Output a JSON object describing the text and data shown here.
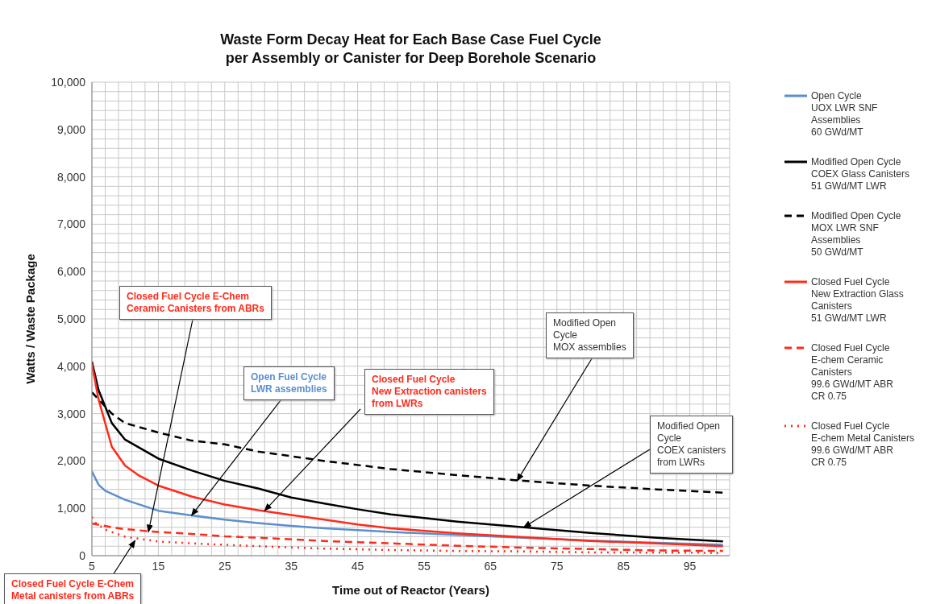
{
  "chart_data": {
    "type": "line",
    "title": "Waste Form Decay Heat for Each Base Case Fuel Cycle\nper Assembly or Canister for Deep Borehole Scenario",
    "xlabel": "Time out of Reactor (Years)",
    "ylabel": "Watts / Waste Package",
    "xlim": [
      5,
      101
    ],
    "ylim": [
      0,
      10000
    ],
    "xticks": [
      5,
      {
        "value": 7,
        "label": null
      },
      {
        "value": 9,
        "label": null
      },
      {
        "value": 11,
        "label": null
      },
      {
        "value": 13,
        "label": null
      },
      15,
      {
        "value": 17,
        "label": null
      },
      {
        "value": 19,
        "label": null
      },
      {
        "value": 21,
        "label": null
      },
      {
        "value": 23,
        "label": null
      },
      25,
      {
        "value": 27,
        "label": null
      },
      {
        "value": 29,
        "label": null
      },
      {
        "value": 31,
        "label": null
      },
      {
        "value": 33,
        "label": null
      },
      35,
      {
        "value": 37,
        "label": null
      },
      {
        "value": 39,
        "label": null
      },
      {
        "value": 41,
        "label": null
      },
      {
        "value": 43,
        "label": null
      },
      45,
      {
        "value": 47,
        "label": null
      },
      {
        "value": 49,
        "label": null
      },
      {
        "value": 51,
        "label": null
      },
      {
        "value": 53,
        "label": null
      },
      55,
      {
        "value": 57,
        "label": null
      },
      {
        "value": 59,
        "label": null
      },
      {
        "value": 61,
        "label": null
      },
      {
        "value": 63,
        "label": null
      },
      65,
      {
        "value": 67,
        "label": null
      },
      {
        "value": 69,
        "label": null
      },
      {
        "value": 71,
        "label": null
      },
      {
        "value": 73,
        "label": null
      },
      75,
      {
        "value": 77,
        "label": null
      },
      {
        "value": 79,
        "label": null
      },
      {
        "value": 81,
        "label": null
      },
      {
        "value": 83,
        "label": null
      },
      85,
      {
        "value": 87,
        "label": null
      },
      {
        "value": 89,
        "label": null
      },
      {
        "value": 91,
        "label": null
      },
      {
        "value": 93,
        "label": null
      },
      95,
      {
        "value": 97,
        "label": null
      },
      {
        "value": 99,
        "label": null
      },
      {
        "value": 101,
        "label": null
      }
    ],
    "yticks": [
      {
        "value": 0,
        "label": "0"
      },
      {
        "value": 200,
        "label": null
      },
      {
        "value": 400,
        "label": null
      },
      {
        "value": 600,
        "label": null
      },
      {
        "value": 800,
        "label": null
      },
      {
        "value": 1000,
        "label": "1,000"
      },
      {
        "value": 1200,
        "label": null
      },
      {
        "value": 1400,
        "label": null
      },
      {
        "value": 1600,
        "label": null
      },
      {
        "value": 1800,
        "label": null
      },
      {
        "value": 2000,
        "label": "2,000"
      },
      {
        "value": 2200,
        "label": null
      },
      {
        "value": 2400,
        "label": null
      },
      {
        "value": 2600,
        "label": null
      },
      {
        "value": 2800,
        "label": null
      },
      {
        "value": 3000,
        "label": "3,000"
      },
      {
        "value": 3200,
        "label": null
      },
      {
        "value": 3400,
        "label": null
      },
      {
        "value": 3600,
        "label": null
      },
      {
        "value": 3800,
        "label": null
      },
      {
        "value": 4000,
        "label": "4,000"
      },
      {
        "value": 4200,
        "label": null
      },
      {
        "value": 4400,
        "label": null
      },
      {
        "value": 4600,
        "label": null
      },
      {
        "value": 4800,
        "label": null
      },
      {
        "value": 5000,
        "label": "5,000"
      },
      {
        "value": 5200,
        "label": null
      },
      {
        "value": 5400,
        "label": null
      },
      {
        "value": 5600,
        "label": null
      },
      {
        "value": 5800,
        "label": null
      },
      {
        "value": 6000,
        "label": "6,000"
      },
      {
        "value": 6200,
        "label": null
      },
      {
        "value": 6400,
        "label": null
      },
      {
        "value": 6600,
        "label": null
      },
      {
        "value": 6800,
        "label": null
      },
      {
        "value": 7000,
        "label": "7,000"
      },
      {
        "value": 7200,
        "label": null
      },
      {
        "value": 7400,
        "label": null
      },
      {
        "value": 7600,
        "label": null
      },
      {
        "value": 7800,
        "label": null
      },
      {
        "value": 8000,
        "label": "8,000"
      },
      {
        "value": 8200,
        "label": null
      },
      {
        "value": 8400,
        "label": null
      },
      {
        "value": 8600,
        "label": null
      },
      {
        "value": 8800,
        "label": null
      },
      {
        "value": 9000,
        "label": "9,000"
      },
      {
        "value": 9200,
        "label": null
      },
      {
        "value": 9400,
        "label": null
      },
      {
        "value": 9600,
        "label": null
      },
      {
        "value": 9800,
        "label": null
      },
      {
        "value": 10000,
        "label": "10,000"
      }
    ],
    "grid": true,
    "legend": "right",
    "marker": "none",
    "series": [
      {
        "name": "Open Cycle\nUOX LWR SNF\nAssemblies\n60 GWd/MT",
        "color": "#5b8fcf",
        "line_style": "solid",
        "x": [
          5,
          6,
          7,
          10,
          15,
          20,
          25,
          30,
          35,
          40,
          45,
          50,
          60,
          70,
          80,
          90,
          100
        ],
        "values": [
          1780,
          1500,
          1370,
          1180,
          950,
          850,
          760,
          690,
          630,
          580,
          540,
          500,
          440,
          380,
          320,
          270,
          230
        ]
      },
      {
        "name": "Modified Open Cycle\nCOEX Glass Canisters\n51 GWd/MT LWR",
        "color": "#000000",
        "line_style": "solid",
        "x": [
          5,
          6,
          8,
          10,
          15,
          20,
          25,
          30,
          35,
          40,
          45,
          50,
          60,
          70,
          80,
          90,
          100
        ],
        "values": [
          4100,
          3500,
          2800,
          2450,
          2050,
          1800,
          1580,
          1420,
          1230,
          1100,
          980,
          870,
          720,
          600,
          480,
          380,
          300
        ]
      },
      {
        "name": "Modified Open Cycle\nMOX LWR SNF\nAssemblies\n50 GWd/MT",
        "color": "#000000",
        "line_style": "dashed",
        "x": [
          5,
          8,
          10,
          15,
          20,
          25,
          30,
          40,
          50,
          60,
          70,
          80,
          90,
          100
        ],
        "values": [
          3450,
          3000,
          2800,
          2600,
          2430,
          2350,
          2200,
          2000,
          1830,
          1700,
          1580,
          1480,
          1400,
          1330
        ]
      },
      {
        "name": "Closed Fuel Cycle\nNew Extraction Glass\nCanisters\n51 GWd/MT LWR",
        "color": "#ff2a1a",
        "line_style": "solid",
        "x": [
          5,
          6,
          8,
          10,
          12,
          15,
          20,
          25,
          30,
          35,
          40,
          45,
          50,
          60,
          70,
          80,
          90,
          100
        ],
        "values": [
          4050,
          3300,
          2300,
          1900,
          1700,
          1480,
          1250,
          1080,
          960,
          860,
          760,
          660,
          580,
          470,
          390,
          310,
          260,
          200
        ]
      },
      {
        "name": "Closed Fuel Cycle\nE-chem Ceramic\nCanisters\n99.6 GWd/MT ABR\nCR 0.75",
        "color": "#ff2a1a",
        "line_style": "dashed",
        "x": [
          5,
          8,
          10,
          15,
          20,
          25,
          30,
          40,
          50,
          60,
          70,
          80,
          90,
          100
        ],
        "values": [
          680,
          600,
          560,
          500,
          460,
          410,
          380,
          310,
          260,
          210,
          170,
          140,
          110,
          100
        ]
      },
      {
        "name": "Closed Fuel Cycle\nE-chem Metal Canisters\n99.6 GWd/MT ABR\nCR 0.75",
        "color": "#ff2a1a",
        "line_style": "dotted",
        "x": [
          5,
          5.5,
          7,
          10,
          15,
          20,
          30,
          40,
          50,
          60,
          70,
          80,
          100
        ],
        "values": [
          820,
          700,
          550,
          400,
          300,
          260,
          200,
          150,
          120,
          100,
          90,
          70,
          60
        ]
      }
    ],
    "annotations": [
      {
        "text": "Closed Fuel Cycle E-Chem\nCeramic Canisters from ABRs",
        "x": 13.5,
        "y": 500
      },
      {
        "text": "Open Fuel Cycle\nLWR assemblies",
        "x": 20,
        "y": 850
      },
      {
        "text": "Closed Fuel Cycle\nNew Extraction canisters\nfrom LWRs",
        "x": 31,
        "y": 950
      },
      {
        "text": "Modified Open\nCycle\nMOX assemblies",
        "x": 69,
        "y": 1580
      },
      {
        "text": "Modified Open\nCycle\nCOEX canisters\nfrom LWRs",
        "x": 70,
        "y": 600
      },
      {
        "text": "Closed Fuel Cycle E-Chem\nMetal canisters from ABRs",
        "x": 11.5,
        "y": 320
      }
    ]
  }
}
